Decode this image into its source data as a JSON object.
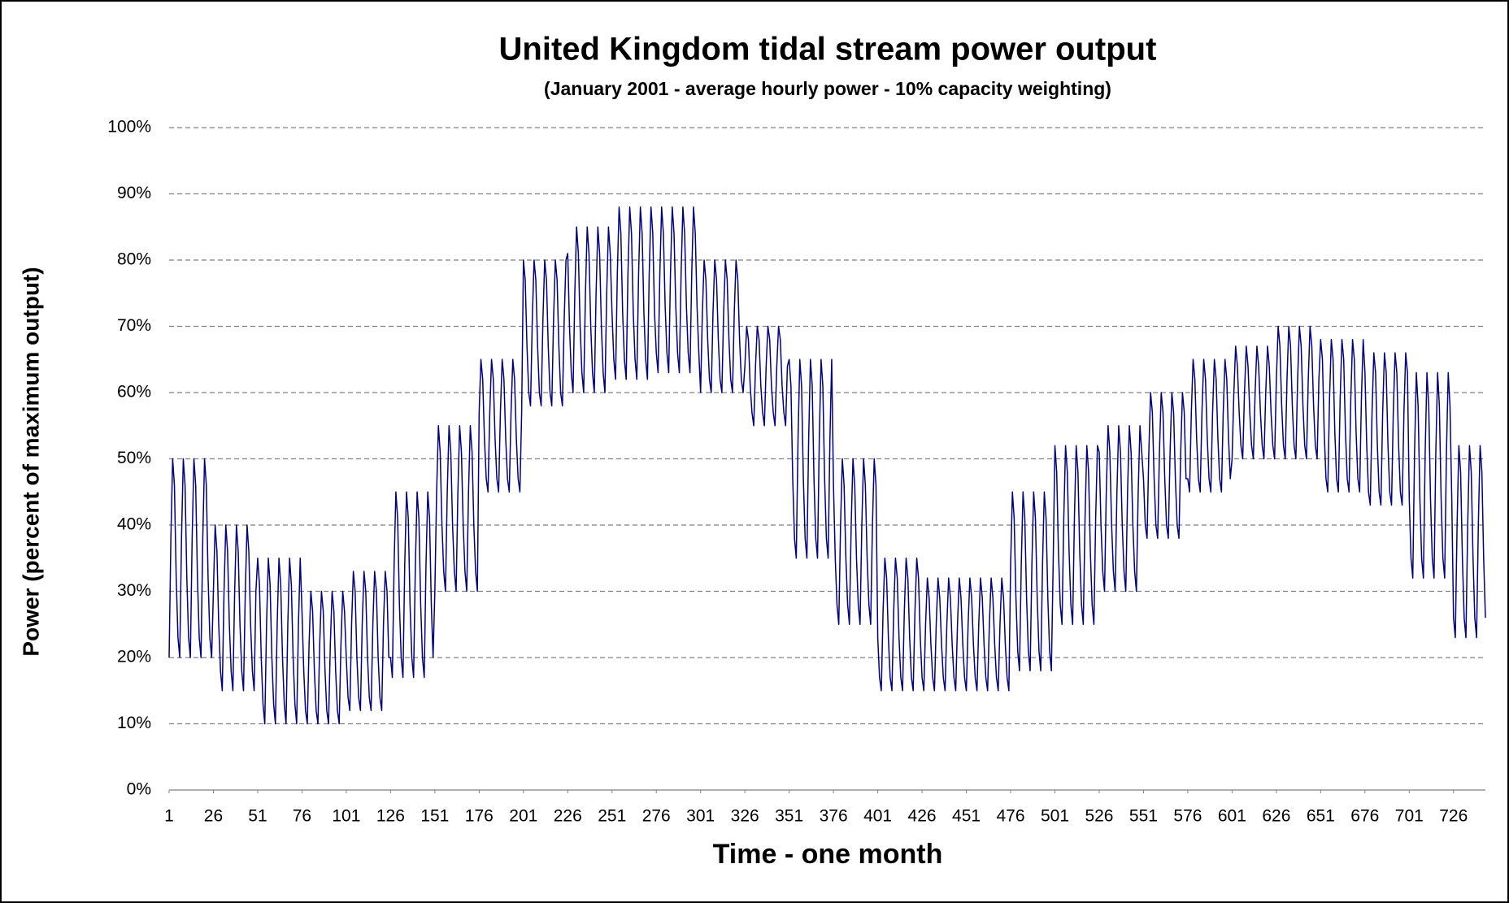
{
  "chart_data": {
    "type": "line",
    "title": "United Kingdom tidal stream power output",
    "subtitle": "(January 2001 - average hourly power - 10% capacity weighting)",
    "x_label": "Time - one month",
    "y_label": "Power (percent of maximum output)",
    "color": "#000080",
    "grid": true,
    "xlim": [
      1,
      744
    ],
    "xticks": [
      1,
      26,
      51,
      76,
      101,
      126,
      151,
      176,
      201,
      226,
      251,
      276,
      301,
      326,
      351,
      376,
      401,
      426,
      451,
      476,
      501,
      526,
      551,
      576,
      601,
      626,
      651,
      676,
      701,
      726
    ],
    "ylim": [
      0,
      100
    ],
    "yticks": [
      {
        "value": 0,
        "label": "0%"
      },
      {
        "value": 10,
        "label": "10%"
      },
      {
        "value": 20,
        "label": "20%"
      },
      {
        "value": 30,
        "label": "30%"
      },
      {
        "value": 40,
        "label": "40%"
      },
      {
        "value": 50,
        "label": "50%"
      },
      {
        "value": 60,
        "label": "60%"
      },
      {
        "value": 70,
        "label": "70%"
      },
      {
        "value": 80,
        "label": "80%"
      },
      {
        "value": 90,
        "label": "90%"
      },
      {
        "value": 100,
        "label": "100%"
      }
    ],
    "x": [
      1,
      2,
      3,
      4,
      5,
      6,
      7,
      8,
      9,
      10,
      11,
      12,
      13,
      14,
      15,
      16,
      17,
      18,
      19,
      20,
      21,
      22,
      23,
      24,
      25,
      26,
      27,
      28,
      29,
      30,
      31,
      32,
      33,
      34,
      35,
      36,
      37,
      38,
      39,
      40,
      41,
      42,
      43,
      44,
      45,
      46,
      47,
      48,
      49,
      50,
      51,
      52,
      53,
      54,
      55,
      56,
      57,
      58,
      59,
      60,
      61,
      62,
      63,
      64,
      65,
      66,
      67,
      68,
      69,
      70,
      71,
      72,
      73,
      74,
      75,
      76,
      77,
      78,
      79,
      80,
      81,
      82,
      83,
      84,
      85,
      86,
      87,
      88,
      89,
      90,
      91,
      92,
      93,
      94,
      95,
      96,
      97,
      98,
      99,
      100,
      101,
      102,
      103,
      104,
      105,
      106,
      107,
      108,
      109,
      110,
      111,
      112,
      113,
      114,
      115,
      116,
      117,
      118,
      119,
      120,
      121,
      122,
      123,
      124,
      125,
      126,
      127,
      128,
      129,
      130,
      131,
      132,
      133,
      134,
      135,
      136,
      137,
      138,
      139,
      140,
      141,
      142,
      143,
      144,
      145,
      146,
      147,
      148,
      149,
      150,
      151,
      152,
      153,
      154,
      155,
      156,
      157,
      158,
      159,
      160,
      161,
      162,
      163,
      164,
      165,
      166,
      167,
      168,
      169,
      170,
      171,
      172,
      173,
      174,
      175,
      176,
      177,
      178,
      179,
      180,
      181,
      182,
      183,
      184,
      185,
      186,
      187,
      188,
      189,
      190,
      191,
      192,
      193,
      194,
      195,
      196,
      197,
      198,
      199,
      200,
      201,
      202,
      203,
      204,
      205,
      206,
      207,
      208,
      209,
      210,
      211,
      212,
      213,
      214,
      215,
      216,
      217,
      218,
      219,
      220,
      221,
      222,
      223,
      224,
      225,
      226,
      227,
      228,
      229,
      230,
      231,
      232,
      233,
      234,
      235,
      236,
      237,
      238,
      239,
      240,
      241,
      242,
      243,
      244,
      245,
      246,
      247,
      248,
      249,
      250,
      251,
      252,
      253,
      254,
      255,
      256,
      257,
      258,
      259,
      260,
      261,
      262,
      263,
      264,
      265,
      266,
      267,
      268,
      269,
      270,
      271,
      272,
      273,
      274,
      275,
      276,
      277,
      278,
      279,
      280,
      281,
      282,
      283,
      284,
      285,
      286,
      287,
      288,
      289,
      290,
      291,
      292,
      293,
      294,
      295,
      296,
      297,
      298,
      299,
      300,
      301,
      302,
      303,
      304,
      305,
      306,
      307,
      308,
      309,
      310,
      311,
      312,
      313,
      314,
      315,
      316,
      317,
      318,
      319,
      320,
      321,
      322,
      323,
      324,
      325,
      326,
      327,
      328,
      329,
      330,
      331,
      332,
      333,
      334,
      335,
      336,
      337,
      338,
      339,
      340,
      341,
      342,
      343,
      344,
      345,
      346,
      347,
      348,
      349,
      350,
      351,
      352,
      353,
      354,
      355,
      356,
      357,
      358,
      359,
      360,
      361,
      362,
      363,
      364,
      365,
      366,
      367,
      368,
      369,
      370,
      371,
      372,
      373,
      374,
      375,
      376,
      377,
      378,
      379,
      380,
      381,
      382,
      383,
      384,
      385,
      386,
      387,
      388,
      389,
      390,
      391,
      392,
      393,
      394,
      395,
      396,
      397,
      398,
      399,
      400,
      401,
      402,
      403,
      404,
      405,
      406,
      407,
      408,
      409,
      410,
      411,
      412,
      413,
      414,
      415,
      416,
      417,
      418,
      419,
      420,
      421,
      422,
      423,
      424,
      425,
      426,
      427,
      428,
      429,
      430,
      431,
      432,
      433,
      434,
      435,
      436,
      437,
      438,
      439,
      440,
      441,
      442,
      443,
      444,
      445,
      446,
      447,
      448,
      449,
      450,
      451,
      452,
      453,
      454,
      455,
      456,
      457,
      458,
      459,
      460,
      461,
      462,
      463,
      464,
      465,
      466,
      467,
      468,
      469,
      470,
      471,
      472,
      473,
      474,
      475,
      476,
      477,
      478,
      479,
      480,
      481,
      482,
      483,
      484,
      485,
      486,
      487,
      488,
      489,
      490,
      491,
      492,
      493,
      494,
      495,
      496,
      497,
      498,
      499,
      500,
      501,
      502,
      503,
      504,
      505,
      506,
      507,
      508,
      509,
      510,
      511,
      512,
      513,
      514,
      515,
      516,
      517,
      518,
      519,
      520,
      521,
      522,
      523,
      524,
      525,
      526,
      527,
      528,
      529,
      530,
      531,
      532,
      533,
      534,
      535,
      536,
      537,
      538,
      539,
      540,
      541,
      542,
      543,
      544,
      545,
      546,
      547,
      548,
      549,
      550,
      551,
      552,
      553,
      554,
      555,
      556,
      557,
      558,
      559,
      560,
      561,
      562,
      563,
      564,
      565,
      566,
      567,
      568,
      569,
      570,
      571,
      572,
      573,
      574,
      575,
      576,
      577,
      578,
      579,
      580,
      581,
      582,
      583,
      584,
      585,
      586,
      587,
      588,
      589,
      590,
      591,
      592,
      593,
      594,
      595,
      596,
      597,
      598,
      599,
      600,
      601,
      602,
      603,
      604,
      605,
      606,
      607,
      608,
      609,
      610,
      611,
      612,
      613,
      614,
      615,
      616,
      617,
      618,
      619,
      620,
      621,
      622,
      623,
      624,
      625,
      626,
      627,
      628,
      629,
      630,
      631,
      632,
      633,
      634,
      635,
      636,
      637,
      638,
      639,
      640,
      641,
      642,
      643,
      644,
      645,
      646,
      647,
      648,
      649,
      650,
      651,
      652,
      653,
      654,
      655,
      656,
      657,
      658,
      659,
      660,
      661,
      662,
      663,
      664,
      665,
      666,
      667,
      668,
      669,
      670,
      671,
      672,
      673,
      674,
      675,
      676,
      677,
      678,
      679,
      680,
      681,
      682,
      683,
      684,
      685,
      686,
      687,
      688,
      689,
      690,
      691,
      692,
      693,
      694,
      695,
      696,
      697,
      698,
      699,
      700,
      701,
      702,
      703,
      704,
      705,
      706,
      707,
      708,
      709,
      710,
      711,
      712,
      713,
      714,
      715,
      716,
      717,
      718,
      719,
      720,
      721,
      722,
      723,
      724,
      725,
      726,
      727,
      728,
      729,
      730,
      731,
      732,
      733,
      734,
      735,
      736,
      737,
      738,
      739,
      740,
      741,
      742,
      743,
      744
    ],
    "values": [
      20,
      38,
      50,
      46,
      32,
      23,
      20,
      38,
      50,
      46,
      32,
      23,
      20,
      38,
      50,
      46,
      32,
      23,
      20,
      38,
      50,
      46,
      32,
      23,
      20,
      30,
      40,
      36,
      25,
      18,
      15,
      30,
      40,
      36,
      25,
      18,
      15,
      30,
      40,
      36,
      25,
      18,
      15,
      30,
      40,
      36,
      25,
      18,
      15,
      30,
      35,
      31,
      20,
      13,
      10,
      25,
      35,
      31,
      20,
      13,
      10,
      25,
      35,
      31,
      20,
      13,
      10,
      25,
      35,
      31,
      20,
      13,
      10,
      25,
      35,
      27,
      18,
      12,
      10,
      22,
      30,
      27,
      18,
      12,
      10,
      22,
      30,
      27,
      18,
      12,
      10,
      22,
      30,
      27,
      18,
      12,
      10,
      22,
      30,
      27,
      20,
      14,
      12,
      25,
      33,
      30,
      20,
      14,
      12,
      25,
      33,
      30,
      20,
      14,
      12,
      25,
      33,
      30,
      20,
      14,
      12,
      25,
      33,
      30,
      20,
      20,
      17,
      34,
      45,
      41,
      28,
      20,
      17,
      34,
      45,
      41,
      28,
      20,
      17,
      34,
      45,
      41,
      28,
      20,
      17,
      34,
      45,
      41,
      28,
      20,
      30,
      45,
      55,
      51,
      40,
      33,
      30,
      45,
      55,
      51,
      40,
      33,
      30,
      45,
      55,
      51,
      40,
      33,
      30,
      45,
      55,
      51,
      40,
      33,
      30,
      57,
      65,
      62,
      53,
      47,
      45,
      57,
      65,
      62,
      53,
      47,
      45,
      57,
      65,
      62,
      53,
      47,
      45,
      57,
      65,
      62,
      53,
      47,
      45,
      57,
      80,
      77,
      67,
      60,
      58,
      71,
      80,
      77,
      67,
      60,
      58,
      71,
      80,
      77,
      67,
      60,
      58,
      71,
      80,
      77,
      67,
      60,
      58,
      71,
      80,
      81,
      70,
      63,
      60,
      75,
      85,
      81,
      70,
      63,
      60,
      75,
      85,
      81,
      70,
      63,
      60,
      75,
      85,
      81,
      70,
      63,
      60,
      75,
      85,
      81,
      72,
      65,
      62,
      78,
      88,
      84,
      72,
      65,
      62,
      78,
      88,
      84,
      72,
      65,
      62,
      78,
      88,
      84,
      72,
      65,
      62,
      78,
      88,
      84,
      72,
      66,
      63,
      78,
      88,
      84,
      73,
      66,
      63,
      78,
      88,
      84,
      73,
      66,
      63,
      78,
      88,
      84,
      73,
      66,
      63,
      78,
      88,
      84,
      73,
      66,
      60,
      72,
      80,
      77,
      68,
      62,
      60,
      72,
      80,
      77,
      68,
      62,
      60,
      72,
      80,
      77,
      68,
      62,
      60,
      72,
      80,
      77,
      68,
      62,
      60,
      64,
      70,
      68,
      61,
      57,
      55,
      64,
      70,
      68,
      61,
      57,
      55,
      64,
      70,
      68,
      61,
      57,
      55,
      64,
      70,
      68,
      61,
      57,
      55,
      64,
      65,
      61,
      47,
      38,
      35,
      53,
      65,
      61,
      47,
      38,
      35,
      53,
      65,
      61,
      47,
      38,
      35,
      53,
      65,
      61,
      47,
      38,
      35,
      53,
      65,
      46,
      35,
      28,
      25,
      40,
      50,
      46,
      35,
      28,
      25,
      40,
      50,
      46,
      35,
      28,
      25,
      40,
      50,
      46,
      35,
      28,
      25,
      40,
      50,
      46,
      23,
      17,
      15,
      27,
      35,
      32,
      23,
      17,
      15,
      27,
      35,
      32,
      23,
      17,
      15,
      27,
      35,
      32,
      23,
      17,
      15,
      27,
      35,
      32,
      23,
      17,
      15,
      25,
      32,
      29,
      22,
      17,
      15,
      25,
      32,
      29,
      22,
      17,
      15,
      25,
      32,
      29,
      22,
      17,
      15,
      25,
      32,
      29,
      22,
      17,
      15,
      25,
      32,
      29,
      22,
      17,
      15,
      25,
      32,
      29,
      22,
      17,
      15,
      25,
      32,
      29,
      22,
      17,
      15,
      25,
      32,
      29,
      22,
      17,
      15,
      34,
      45,
      41,
      29,
      21,
      18,
      34,
      45,
      41,
      29,
      21,
      18,
      34,
      45,
      41,
      29,
      21,
      18,
      34,
      45,
      41,
      29,
      21,
      18,
      34,
      52,
      48,
      36,
      28,
      25,
      41,
      52,
      48,
      36,
      28,
      25,
      41,
      52,
      48,
      36,
      28,
      25,
      41,
      52,
      48,
      36,
      28,
      25,
      41,
      52,
      51,
      40,
      33,
      30,
      45,
      55,
      51,
      40,
      33,
      30,
      45,
      55,
      51,
      40,
      33,
      30,
      45,
      55,
      51,
      40,
      33,
      30,
      45,
      55,
      51,
      47,
      40,
      38,
      51,
      60,
      57,
      47,
      40,
      38,
      51,
      60,
      57,
      47,
      40,
      38,
      51,
      60,
      57,
      47,
      40,
      38,
      51,
      60,
      57,
      47,
      47,
      45,
      57,
      65,
      62,
      53,
      47,
      45,
      57,
      65,
      62,
      53,
      47,
      45,
      57,
      65,
      62,
      53,
      47,
      45,
      57,
      65,
      62,
      53,
      47,
      50,
      60,
      67,
      64,
      57,
      52,
      50,
      60,
      67,
      64,
      57,
      52,
      50,
      60,
      67,
      64,
      57,
      52,
      50,
      60,
      67,
      64,
      57,
      52,
      50,
      62,
      70,
      67,
      58,
      52,
      50,
      62,
      70,
      67,
      58,
      52,
      50,
      62,
      70,
      67,
      58,
      52,
      50,
      62,
      70,
      67,
      58,
      52,
      50,
      62,
      68,
      65,
      54,
      47,
      45,
      59,
      68,
      65,
      54,
      47,
      45,
      59,
      68,
      65,
      54,
      47,
      45,
      59,
      68,
      65,
      54,
      47,
      45,
      59,
      68,
      63,
      52,
      45,
      43,
      57,
      66,
      63,
      52,
      45,
      43,
      57,
      66,
      63,
      52,
      45,
      43,
      57,
      66,
      63,
      52,
      45,
      43,
      57,
      66,
      63,
      44,
      35,
      32,
      51,
      63,
      58,
      44,
      35,
      32,
      51,
      63,
      58,
      44,
      35,
      32,
      51,
      63,
      58,
      44,
      35,
      32,
      51,
      63,
      58,
      44,
      26,
      23,
      40,
      52,
      48,
      35,
      26,
      23,
      40,
      52,
      48,
      35,
      26,
      23,
      40,
      52,
      48,
      35,
      26
    ]
  }
}
